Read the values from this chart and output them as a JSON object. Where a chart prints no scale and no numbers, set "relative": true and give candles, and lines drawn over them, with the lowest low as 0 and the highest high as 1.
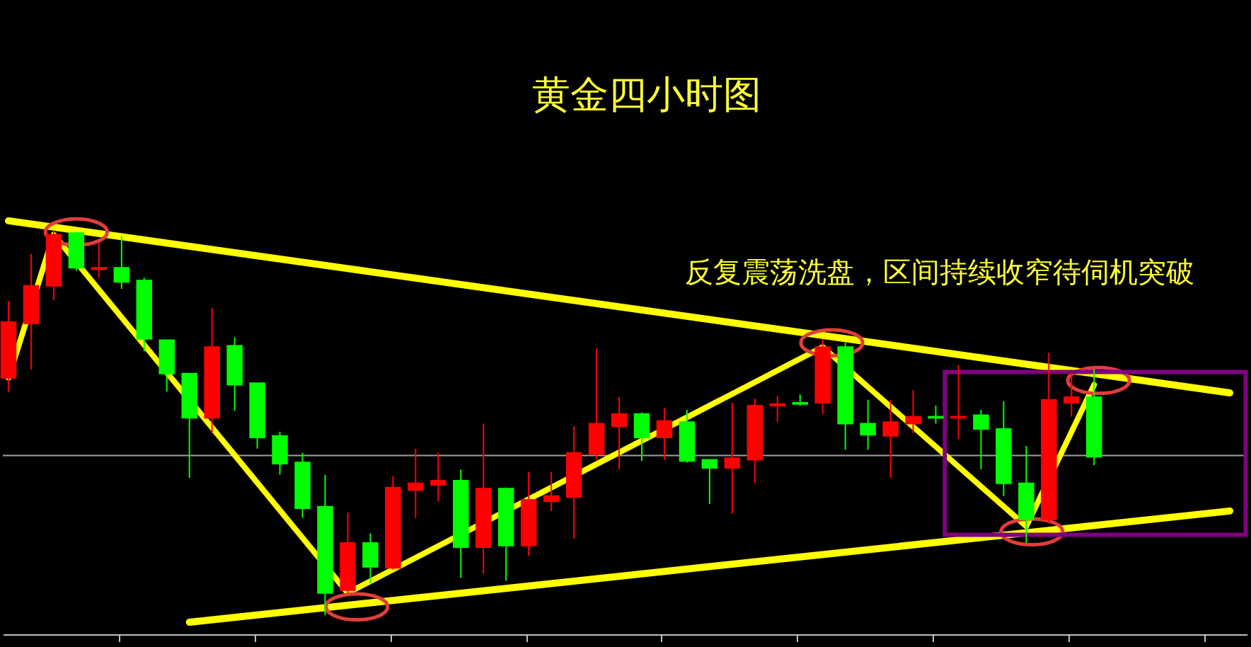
{
  "chart_data": {
    "type": "candlestick",
    "title": "黄金四小时图",
    "annotations": [
      "反复震荡洗盘，区间持续收窄待伺机突破"
    ],
    "relative": true,
    "tick_labels": false,
    "grid": false,
    "categories": [
      null,
      null,
      null,
      null,
      null,
      null,
      null,
      null,
      null,
      null,
      null,
      null,
      null,
      null,
      null,
      null,
      null,
      null,
      null,
      null,
      null,
      null,
      null,
      null,
      null,
      null,
      null,
      null,
      null,
      null,
      null,
      null,
      null,
      null,
      null,
      null,
      null,
      null,
      null,
      null,
      null,
      null,
      null,
      null,
      null,
      null,
      null,
      null,
      null,
      null,
      null,
      null,
      null,
      null,
      null
    ],
    "ohlc": [
      [
        0.617,
        0.816,
        0.581,
        0.762
      ],
      [
        0.758,
        0.939,
        0.639,
        0.856
      ],
      [
        0.856,
        1.0,
        0.819,
        0.989
      ],
      [
        0.993,
        0.996,
        0.895,
        0.903
      ],
      [
        0.899,
        0.968,
        0.877,
        0.903
      ],
      [
        0.903,
        0.986,
        0.848,
        0.866
      ],
      [
        0.87,
        0.877,
        0.686,
        0.718
      ],
      [
        0.715,
        0.715,
        0.581,
        0.628
      ],
      [
        0.628,
        0.628,
        0.357,
        0.513
      ],
      [
        0.513,
        0.798,
        0.473,
        0.697
      ],
      [
        0.7,
        0.722,
        0.531,
        0.599
      ],
      [
        0.603,
        0.603,
        0.433,
        0.462
      ],
      [
        0.466,
        0.477,
        0.365,
        0.394
      ],
      [
        0.397,
        0.422,
        0.253,
        0.278
      ],
      [
        0.282,
        0.365,
        0.0,
        0.058
      ],
      [
        0.065,
        0.267,
        0.058,
        0.188
      ],
      [
        0.188,
        0.213,
        0.083,
        0.126
      ],
      [
        0.123,
        0.361,
        0.119,
        0.332
      ],
      [
        0.325,
        0.433,
        0.253,
        0.343
      ],
      [
        0.339,
        0.422,
        0.296,
        0.35
      ],
      [
        0.35,
        0.379,
        0.097,
        0.177
      ],
      [
        0.177,
        0.498,
        0.108,
        0.329
      ],
      [
        0.329,
        0.332,
        0.09,
        0.181
      ],
      [
        0.181,
        0.372,
        0.155,
        0.3
      ],
      [
        0.296,
        0.372,
        0.271,
        0.31
      ],
      [
        0.307,
        0.491,
        0.199,
        0.422
      ],
      [
        0.419,
        0.693,
        0.404,
        0.498
      ],
      [
        0.491,
        0.567,
        0.379,
        0.523
      ],
      [
        0.523,
        0.527,
        0.401,
        0.462
      ],
      [
        0.462,
        0.538,
        0.404,
        0.505
      ],
      [
        0.502,
        0.534,
        0.397,
        0.401
      ],
      [
        0.404,
        0.404,
        0.289,
        0.383
      ],
      [
        0.383,
        0.552,
        0.264,
        0.408
      ],
      [
        0.404,
        0.563,
        0.343,
        0.545
      ],
      [
        0.545,
        0.57,
        0.502,
        0.549
      ],
      [
        0.552,
        0.574,
        0.545,
        0.549
      ],
      [
        0.552,
        0.718,
        0.523,
        0.697
      ],
      [
        0.697,
        0.708,
        0.43,
        0.498
      ],
      [
        0.498,
        0.56,
        0.43,
        0.469
      ],
      [
        0.466,
        0.56,
        0.357,
        0.502
      ],
      [
        0.498,
        0.585,
        0.473,
        0.516
      ],
      [
        0.516,
        0.545,
        0.498,
        0.513
      ],
      [
        0.513,
        0.65,
        0.458,
        0.516
      ],
      [
        0.52,
        0.534,
        0.379,
        0.484
      ],
      [
        0.484,
        0.556,
        0.31,
        0.343
      ],
      [
        0.343,
        0.44,
        0.188,
        0.249
      ],
      [
        0.249,
        0.682,
        0.238,
        0.56
      ],
      [
        0.552,
        0.625,
        0.516,
        0.567
      ],
      [
        0.567,
        0.639,
        0.39,
        0.412
      ],
      null,
      null,
      null,
      null,
      null,
      null
    ],
    "colors": [
      "#ff0000",
      "#ff0000",
      "#ff0000",
      "#00ff00",
      "#ff0000",
      "#00ff00",
      "#00ff00",
      "#00ff00",
      "#00ff00",
      "#ff0000",
      "#00ff00",
      "#00ff00",
      "#00ff00",
      "#00ff00",
      "#00ff00",
      "#ff0000",
      "#00ff00",
      "#ff0000",
      "#ff0000",
      "#ff0000",
      "#00ff00",
      "#ff0000",
      "#00ff00",
      "#ff0000",
      "#ff0000",
      "#ff0000",
      "#ff0000",
      "#ff0000",
      "#00ff00",
      "#ff0000",
      "#00ff00",
      "#00ff00",
      "#ff0000",
      "#ff0000",
      "#ff0000",
      "#00ff00",
      "#ff0000",
      "#00ff00",
      "#00ff00",
      "#ff0000",
      "#ff0000",
      "#00ff00",
      "#ff0000",
      "#00ff00",
      "#00ff00",
      "#00ff00",
      "#ff0000",
      "#ff0000",
      "#00ff00",
      null,
      null,
      null,
      null,
      null,
      null
    ],
    "series": [
      {
        "type": "line",
        "color": "#ffff00",
        "values": [
          1.025,
          null,
          null,
          null,
          null,
          null,
          null,
          null,
          null,
          null,
          null,
          null,
          null,
          null,
          null,
          null,
          null,
          null,
          null,
          null,
          null,
          null,
          null,
          null,
          null,
          null,
          null,
          null,
          null,
          null,
          null,
          null,
          null,
          null,
          null,
          null,
          null,
          null,
          null,
          null,
          null,
          null,
          null,
          null,
          null,
          null,
          null,
          null,
          null,
          null,
          null,
          null,
          null,
          null,
          0.578
        ]
      },
      {
        "type": "line",
        "color": "#ffff00",
        "values": [
          null,
          null,
          null,
          null,
          null,
          null,
          null,
          null,
          -0.018,
          null,
          null,
          null,
          null,
          null,
          null,
          null,
          null,
          null,
          null,
          null,
          null,
          null,
          null,
          null,
          null,
          null,
          null,
          null,
          null,
          null,
          null,
          null,
          null,
          null,
          null,
          null,
          null,
          null,
          null,
          null,
          null,
          null,
          null,
          null,
          null,
          null,
          null,
          null,
          null,
          null,
          null,
          null,
          null,
          null,
          0.271
        ]
      },
      {
        "type": "line",
        "color": "#ffff00",
        "values": [
          0.617,
          null,
          0.989,
          null,
          null,
          null,
          null,
          null,
          null,
          null,
          null,
          null,
          null,
          null,
          null,
          0.058,
          null,
          null,
          null,
          null,
          null,
          null,
          null,
          null,
          null,
          null,
          null,
          null,
          null,
          null,
          null,
          null,
          null,
          null,
          null,
          null,
          0.697,
          null,
          null,
          null,
          null,
          null,
          null,
          null,
          null,
          0.231,
          null,
          null,
          0.599,
          null,
          null,
          null,
          null,
          null,
          null
        ]
      }
    ],
    "ref_lines": [
      {
        "axis": "y",
        "value": 0.415,
        "color": "#a0a0a0"
      }
    ]
  }
}
